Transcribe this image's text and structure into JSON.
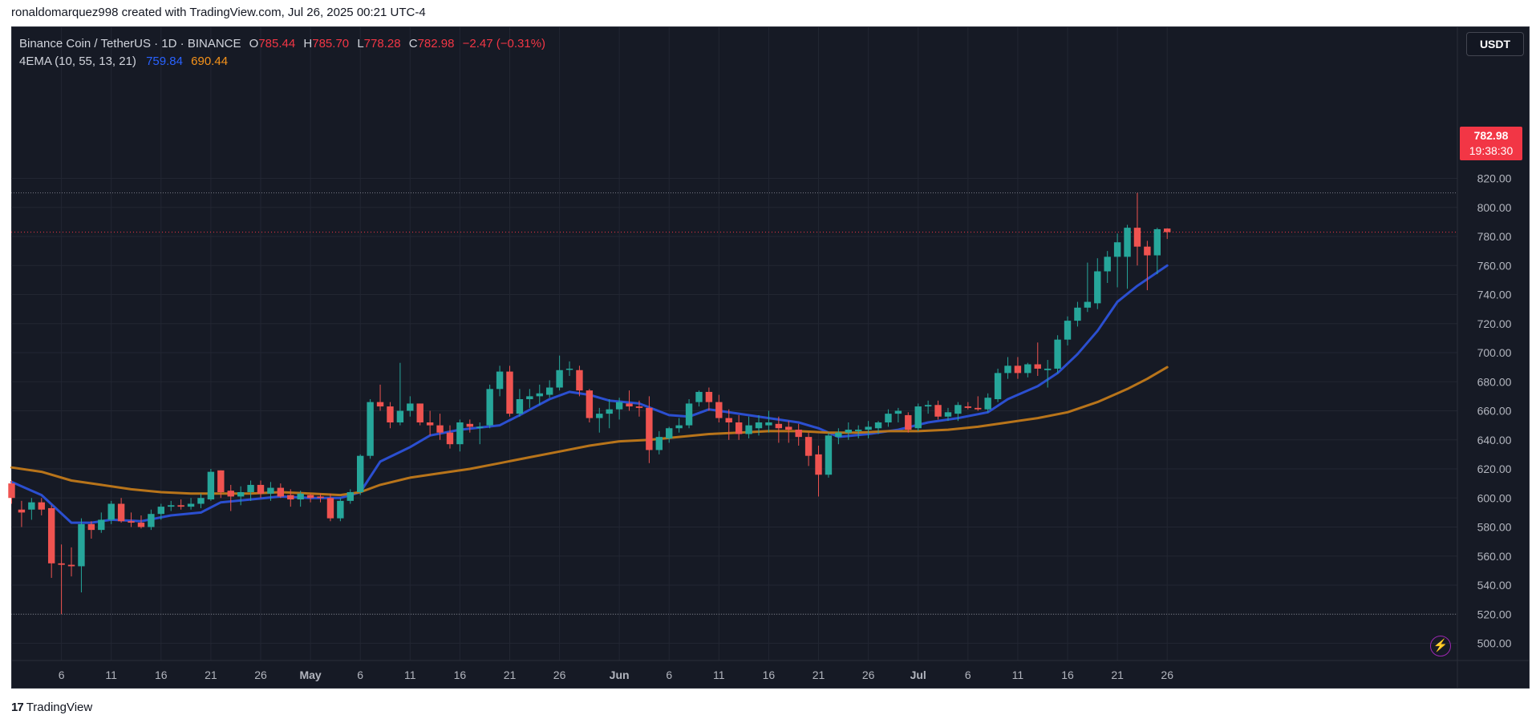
{
  "credit": "ronaldomarquez998 created with TradingView.com, Jul 26, 2025 00:21 UTC-4",
  "legend": {
    "symbol": "Binance Coin / TetherUS · 1D · BINANCE",
    "open_label": "O",
    "open": "785.44",
    "high_label": "H",
    "high": "785.70",
    "low_label": "L",
    "low": "778.28",
    "close_label": "C",
    "close": "782.98",
    "change": "−2.47 (−0.31%)",
    "indicator": "4EMA (10, 55, 13, 21)",
    "ema_fast_value": "759.84",
    "ema_slow_value": "690.44"
  },
  "currency": "USDT",
  "price_badge": {
    "price": "782.98",
    "countdown": "19:38:30"
  },
  "footer": {
    "logo_mark": "17",
    "logo_text": "TradingView"
  },
  "colors": {
    "up": "#26a69a",
    "down": "#ef5350",
    "ema_fast": "#2b4fd0",
    "ema_slow": "#b8741a",
    "grid": "#222632",
    "axis_text": "#b2b5be",
    "last_price": "#f23645"
  },
  "icons": {
    "alert": "lightning-bolt-icon",
    "logo": "tradingview-logo-icon"
  },
  "chart_data": {
    "type": "candlestick",
    "y_axis": {
      "min": 490,
      "max": 830,
      "ticks": [
        500,
        520,
        540,
        560,
        580,
        600,
        620,
        640,
        660,
        680,
        700,
        720,
        740,
        760,
        780,
        800,
        820
      ],
      "tick_labels": [
        "500.00",
        "520.00",
        "540.00",
        "560.00",
        "580.00",
        "600.00",
        "620.00",
        "640.00",
        "660.00",
        "680.00",
        "700.00",
        "720.00",
        "740.00",
        "760.00",
        "780.00",
        "800.00",
        "820.00"
      ]
    },
    "x_axis": {
      "tick_labels": [
        "6",
        "11",
        "16",
        "21",
        "26",
        "May",
        "6",
        "11",
        "16",
        "21",
        "26",
        "Jun",
        "6",
        "11",
        "16",
        "21",
        "26",
        "Jul",
        "6",
        "11",
        "16",
        "21",
        "26"
      ],
      "tick_days": [
        5,
        10,
        15,
        20,
        25,
        30,
        35,
        40,
        45,
        50,
        55,
        61,
        66,
        71,
        76,
        81,
        86,
        91,
        96,
        101,
        106,
        111,
        116
      ]
    },
    "horizontal_levels": [
      810,
      520
    ],
    "last_price_line": 782.98,
    "candles": [
      {
        "d": 0,
        "o": 610,
        "h": 612,
        "l": 596,
        "c": 600
      },
      {
        "d": 1,
        "o": 592,
        "h": 598,
        "l": 580,
        "c": 590
      },
      {
        "d": 2,
        "o": 592,
        "h": 600,
        "l": 585,
        "c": 597
      },
      {
        "d": 3,
        "o": 597,
        "h": 600,
        "l": 588,
        "c": 592
      },
      {
        "d": 4,
        "o": 593,
        "h": 595,
        "l": 545,
        "c": 555
      },
      {
        "d": 5,
        "o": 555,
        "h": 568,
        "l": 520,
        "c": 554
      },
      {
        "d": 6,
        "o": 554,
        "h": 566,
        "l": 546,
        "c": 553
      },
      {
        "d": 7,
        "o": 553,
        "h": 586,
        "l": 535,
        "c": 582
      },
      {
        "d": 8,
        "o": 582,
        "h": 584,
        "l": 572,
        "c": 578
      },
      {
        "d": 9,
        "o": 578,
        "h": 590,
        "l": 576,
        "c": 585
      },
      {
        "d": 10,
        "o": 585,
        "h": 598,
        "l": 582,
        "c": 596
      },
      {
        "d": 11,
        "o": 596,
        "h": 600,
        "l": 583,
        "c": 584
      },
      {
        "d": 12,
        "o": 584,
        "h": 590,
        "l": 580,
        "c": 583
      },
      {
        "d": 13,
        "o": 583,
        "h": 588,
        "l": 579,
        "c": 580
      },
      {
        "d": 14,
        "o": 580,
        "h": 592,
        "l": 578,
        "c": 589
      },
      {
        "d": 15,
        "o": 589,
        "h": 596,
        "l": 585,
        "c": 594
      },
      {
        "d": 16,
        "o": 594,
        "h": 598,
        "l": 591,
        "c": 595
      },
      {
        "d": 17,
        "o": 595,
        "h": 599,
        "l": 592,
        "c": 594
      },
      {
        "d": 18,
        "o": 594,
        "h": 600,
        "l": 592,
        "c": 596
      },
      {
        "d": 19,
        "o": 596,
        "h": 603,
        "l": 593,
        "c": 600
      },
      {
        "d": 20,
        "o": 599,
        "h": 620,
        "l": 598,
        "c": 618
      },
      {
        "d": 21,
        "o": 619,
        "h": 619,
        "l": 600,
        "c": 604
      },
      {
        "d": 22,
        "o": 605,
        "h": 609,
        "l": 591,
        "c": 601
      },
      {
        "d": 23,
        "o": 601,
        "h": 608,
        "l": 595,
        "c": 604
      },
      {
        "d": 24,
        "o": 604,
        "h": 612,
        "l": 598,
        "c": 609
      },
      {
        "d": 25,
        "o": 609,
        "h": 612,
        "l": 600,
        "c": 603
      },
      {
        "d": 26,
        "o": 603,
        "h": 611,
        "l": 598,
        "c": 607
      },
      {
        "d": 27,
        "o": 607,
        "h": 610,
        "l": 600,
        "c": 601
      },
      {
        "d": 28,
        "o": 602,
        "h": 606,
        "l": 594,
        "c": 599
      },
      {
        "d": 29,
        "o": 599,
        "h": 605,
        "l": 594,
        "c": 603
      },
      {
        "d": 30,
        "o": 602,
        "h": 603,
        "l": 597,
        "c": 600
      },
      {
        "d": 31,
        "o": 601,
        "h": 603,
        "l": 597,
        "c": 600
      },
      {
        "d": 32,
        "o": 600,
        "h": 603,
        "l": 584,
        "c": 586
      },
      {
        "d": 33,
        "o": 586,
        "h": 600,
        "l": 584,
        "c": 598
      },
      {
        "d": 34,
        "o": 598,
        "h": 606,
        "l": 596,
        "c": 604
      },
      {
        "d": 35,
        "o": 604,
        "h": 630,
        "l": 602,
        "c": 629
      },
      {
        "d": 36,
        "o": 629,
        "h": 668,
        "l": 627,
        "c": 666
      },
      {
        "d": 37,
        "o": 666,
        "h": 678,
        "l": 660,
        "c": 663
      },
      {
        "d": 38,
        "o": 663,
        "h": 666,
        "l": 648,
        "c": 652
      },
      {
        "d": 39,
        "o": 652,
        "h": 693,
        "l": 650,
        "c": 660
      },
      {
        "d": 40,
        "o": 660,
        "h": 670,
        "l": 656,
        "c": 665
      },
      {
        "d": 41,
        "o": 665,
        "h": 665,
        "l": 650,
        "c": 652
      },
      {
        "d": 42,
        "o": 652,
        "h": 660,
        "l": 643,
        "c": 650
      },
      {
        "d": 43,
        "o": 650,
        "h": 658,
        "l": 640,
        "c": 645
      },
      {
        "d": 44,
        "o": 645,
        "h": 650,
        "l": 634,
        "c": 637
      },
      {
        "d": 45,
        "o": 637,
        "h": 654,
        "l": 632,
        "c": 652
      },
      {
        "d": 46,
        "o": 651,
        "h": 654,
        "l": 645,
        "c": 649
      },
      {
        "d": 47,
        "o": 649,
        "h": 652,
        "l": 637,
        "c": 649
      },
      {
        "d": 48,
        "o": 650,
        "h": 678,
        "l": 648,
        "c": 675
      },
      {
        "d": 49,
        "o": 675,
        "h": 691,
        "l": 670,
        "c": 687
      },
      {
        "d": 50,
        "o": 687,
        "h": 691,
        "l": 656,
        "c": 658
      },
      {
        "d": 51,
        "o": 658,
        "h": 675,
        "l": 656,
        "c": 668
      },
      {
        "d": 52,
        "o": 668,
        "h": 675,
        "l": 662,
        "c": 670
      },
      {
        "d": 53,
        "o": 670,
        "h": 678,
        "l": 664,
        "c": 672
      },
      {
        "d": 54,
        "o": 671,
        "h": 681,
        "l": 669,
        "c": 676
      },
      {
        "d": 55,
        "o": 676,
        "h": 698,
        "l": 674,
        "c": 688
      },
      {
        "d": 56,
        "o": 689,
        "h": 694,
        "l": 684,
        "c": 689
      },
      {
        "d": 57,
        "o": 688,
        "h": 691,
        "l": 670,
        "c": 674
      },
      {
        "d": 58,
        "o": 674,
        "h": 675,
        "l": 652,
        "c": 655
      },
      {
        "d": 59,
        "o": 655,
        "h": 662,
        "l": 645,
        "c": 658
      },
      {
        "d": 60,
        "o": 658,
        "h": 668,
        "l": 648,
        "c": 661
      },
      {
        "d": 61,
        "o": 661,
        "h": 669,
        "l": 654,
        "c": 666
      },
      {
        "d": 62,
        "o": 665,
        "h": 674,
        "l": 660,
        "c": 663
      },
      {
        "d": 63,
        "o": 663,
        "h": 667,
        "l": 656,
        "c": 662
      },
      {
        "d": 64,
        "o": 662,
        "h": 670,
        "l": 624,
        "c": 633
      },
      {
        "d": 65,
        "o": 633,
        "h": 646,
        "l": 630,
        "c": 642
      },
      {
        "d": 66,
        "o": 641,
        "h": 649,
        "l": 638,
        "c": 648
      },
      {
        "d": 67,
        "o": 648,
        "h": 655,
        "l": 645,
        "c": 650
      },
      {
        "d": 68,
        "o": 650,
        "h": 668,
        "l": 648,
        "c": 665
      },
      {
        "d": 69,
        "o": 666,
        "h": 674,
        "l": 663,
        "c": 673
      },
      {
        "d": 70,
        "o": 673,
        "h": 676,
        "l": 660,
        "c": 666
      },
      {
        "d": 71,
        "o": 666,
        "h": 671,
        "l": 652,
        "c": 655
      },
      {
        "d": 72,
        "o": 655,
        "h": 661,
        "l": 640,
        "c": 652
      },
      {
        "d": 73,
        "o": 652,
        "h": 657,
        "l": 640,
        "c": 644
      },
      {
        "d": 74,
        "o": 644,
        "h": 656,
        "l": 641,
        "c": 650
      },
      {
        "d": 75,
        "o": 648,
        "h": 657,
        "l": 643,
        "c": 652
      },
      {
        "d": 76,
        "o": 650,
        "h": 660,
        "l": 645,
        "c": 652
      },
      {
        "d": 77,
        "o": 651,
        "h": 656,
        "l": 638,
        "c": 648
      },
      {
        "d": 78,
        "o": 649,
        "h": 653,
        "l": 638,
        "c": 647
      },
      {
        "d": 79,
        "o": 647,
        "h": 651,
        "l": 636,
        "c": 642
      },
      {
        "d": 80,
        "o": 642,
        "h": 645,
        "l": 622,
        "c": 629
      },
      {
        "d": 81,
        "o": 630,
        "h": 636,
        "l": 601,
        "c": 616
      },
      {
        "d": 82,
        "o": 616,
        "h": 645,
        "l": 614,
        "c": 643
      },
      {
        "d": 83,
        "o": 642,
        "h": 648,
        "l": 637,
        "c": 645
      },
      {
        "d": 84,
        "o": 645,
        "h": 652,
        "l": 640,
        "c": 647
      },
      {
        "d": 85,
        "o": 646,
        "h": 650,
        "l": 641,
        "c": 647
      },
      {
        "d": 86,
        "o": 647,
        "h": 653,
        "l": 641,
        "c": 649
      },
      {
        "d": 87,
        "o": 648,
        "h": 653,
        "l": 644,
        "c": 652
      },
      {
        "d": 88,
        "o": 652,
        "h": 661,
        "l": 649,
        "c": 658
      },
      {
        "d": 89,
        "o": 658,
        "h": 662,
        "l": 652,
        "c": 660
      },
      {
        "d": 90,
        "o": 657,
        "h": 659,
        "l": 645,
        "c": 647
      },
      {
        "d": 91,
        "o": 648,
        "h": 665,
        "l": 646,
        "c": 663
      },
      {
        "d": 92,
        "o": 663,
        "h": 667,
        "l": 658,
        "c": 664
      },
      {
        "d": 93,
        "o": 664,
        "h": 667,
        "l": 654,
        "c": 656
      },
      {
        "d": 94,
        "o": 656,
        "h": 662,
        "l": 653,
        "c": 659
      },
      {
        "d": 95,
        "o": 658,
        "h": 666,
        "l": 653,
        "c": 664
      },
      {
        "d": 96,
        "o": 663,
        "h": 666,
        "l": 661,
        "c": 662
      },
      {
        "d": 97,
        "o": 662,
        "h": 670,
        "l": 660,
        "c": 661
      },
      {
        "d": 98,
        "o": 661,
        "h": 672,
        "l": 659,
        "c": 669
      },
      {
        "d": 99,
        "o": 668,
        "h": 689,
        "l": 666,
        "c": 686
      },
      {
        "d": 100,
        "o": 686,
        "h": 697,
        "l": 682,
        "c": 691
      },
      {
        "d": 101,
        "o": 691,
        "h": 697,
        "l": 682,
        "c": 686
      },
      {
        "d": 102,
        "o": 686,
        "h": 693,
        "l": 683,
        "c": 692
      },
      {
        "d": 103,
        "o": 692,
        "h": 707,
        "l": 684,
        "c": 689
      },
      {
        "d": 104,
        "o": 688,
        "h": 695,
        "l": 676,
        "c": 689
      },
      {
        "d": 105,
        "o": 689,
        "h": 712,
        "l": 686,
        "c": 709
      },
      {
        "d": 106,
        "o": 709,
        "h": 725,
        "l": 705,
        "c": 722
      },
      {
        "d": 107,
        "o": 722,
        "h": 735,
        "l": 718,
        "c": 731
      },
      {
        "d": 108,
        "o": 731,
        "h": 762,
        "l": 728,
        "c": 735
      },
      {
        "d": 109,
        "o": 734,
        "h": 765,
        "l": 730,
        "c": 756
      },
      {
        "d": 110,
        "o": 756,
        "h": 770,
        "l": 748,
        "c": 766
      },
      {
        "d": 111,
        "o": 766,
        "h": 782,
        "l": 745,
        "c": 776
      },
      {
        "d": 112,
        "o": 766,
        "h": 788,
        "l": 744,
        "c": 786
      },
      {
        "d": 113,
        "o": 786,
        "h": 810,
        "l": 760,
        "c": 773
      },
      {
        "d": 114,
        "o": 773,
        "h": 777,
        "l": 743,
        "c": 767
      },
      {
        "d": 115,
        "o": 767,
        "h": 786,
        "l": 754,
        "c": 785
      },
      {
        "d": 116,
        "o": 785.44,
        "h": 785.7,
        "l": 778.28,
        "c": 782.98
      }
    ],
    "series": [
      {
        "name": "759.84",
        "type": "ema",
        "points": [
          [
            0,
            611
          ],
          [
            3,
            602
          ],
          [
            6,
            583
          ],
          [
            8,
            583
          ],
          [
            10,
            585
          ],
          [
            13,
            584
          ],
          [
            16,
            588
          ],
          [
            19,
            590
          ],
          [
            21,
            597
          ],
          [
            24,
            599
          ],
          [
            27,
            601
          ],
          [
            30,
            600
          ],
          [
            33,
            600
          ],
          [
            35,
            604
          ],
          [
            37,
            625
          ],
          [
            40,
            635
          ],
          [
            42,
            643
          ],
          [
            45,
            647
          ],
          [
            49,
            650
          ],
          [
            51,
            657
          ],
          [
            54,
            668
          ],
          [
            56,
            673
          ],
          [
            58,
            671
          ],
          [
            60,
            667
          ],
          [
            63,
            665
          ],
          [
            66,
            657
          ],
          [
            68,
            656
          ],
          [
            70,
            661
          ],
          [
            73,
            658
          ],
          [
            76,
            655
          ],
          [
            79,
            652
          ],
          [
            81,
            648
          ],
          [
            83,
            642
          ],
          [
            86,
            644
          ],
          [
            89,
            647
          ],
          [
            92,
            652
          ],
          [
            95,
            655
          ],
          [
            98,
            659
          ],
          [
            100,
            668
          ],
          [
            103,
            677
          ],
          [
            105,
            686
          ],
          [
            107,
            699
          ],
          [
            109,
            715
          ],
          [
            111,
            735
          ],
          [
            113,
            746
          ],
          [
            116,
            760
          ]
        ]
      },
      {
        "name": "690.44",
        "type": "ema",
        "points": [
          [
            0,
            621
          ],
          [
            3,
            618
          ],
          [
            6,
            612
          ],
          [
            9,
            609
          ],
          [
            12,
            606
          ],
          [
            15,
            604
          ],
          [
            18,
            603
          ],
          [
            21,
            603
          ],
          [
            24,
            603
          ],
          [
            27,
            604
          ],
          [
            30,
            603
          ],
          [
            33,
            602
          ],
          [
            35,
            604
          ],
          [
            37,
            609
          ],
          [
            40,
            614
          ],
          [
            43,
            617
          ],
          [
            46,
            620
          ],
          [
            49,
            624
          ],
          [
            52,
            628
          ],
          [
            55,
            632
          ],
          [
            58,
            636
          ],
          [
            61,
            639
          ],
          [
            64,
            640
          ],
          [
            67,
            642
          ],
          [
            70,
            644
          ],
          [
            73,
            645
          ],
          [
            76,
            646
          ],
          [
            79,
            646
          ],
          [
            82,
            645
          ],
          [
            85,
            645
          ],
          [
            88,
            646
          ],
          [
            91,
            646
          ],
          [
            94,
            647
          ],
          [
            97,
            649
          ],
          [
            100,
            652
          ],
          [
            103,
            655
          ],
          [
            106,
            659
          ],
          [
            109,
            666
          ],
          [
            112,
            675
          ],
          [
            114,
            682
          ],
          [
            116,
            690
          ]
        ]
      }
    ]
  }
}
